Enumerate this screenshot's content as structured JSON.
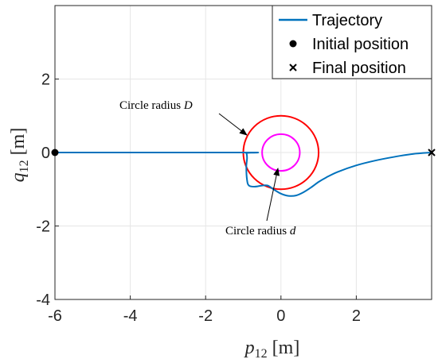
{
  "chart_data": {
    "type": "line",
    "title": "",
    "xlabel": {
      "var": "p",
      "sub": "12",
      "unit": "[m]"
    },
    "ylabel": {
      "var": "q",
      "sub": "12",
      "unit": "[m]"
    },
    "xlim": [
      -6,
      4
    ],
    "ylim": [
      -4,
      4
    ],
    "xticks": [
      -6,
      -4,
      -2,
      0,
      2
    ],
    "xtick_labels": [
      "-6",
      "-4",
      "-2",
      "0",
      "2"
    ],
    "yticks": [
      -4,
      -2,
      0,
      2
    ],
    "ytick_labels": [
      "-4",
      "-2",
      "0",
      "2"
    ],
    "grid": true,
    "legend": {
      "placement": "top-right",
      "entries": [
        {
          "label": "Trajectory",
          "marker": "line",
          "color": "#0072BD"
        },
        {
          "label": "Initial position",
          "marker": "dot",
          "color": "#000000"
        },
        {
          "label": "Final position",
          "marker": "x",
          "color": "#000000"
        }
      ]
    },
    "series": [
      {
        "name": "Trajectory",
        "color": "#0072BD",
        "points": [
          [
            -6.0,
            0.0
          ],
          [
            -1.0,
            0.0
          ],
          [
            -0.92,
            -0.02
          ],
          [
            -0.9,
            -0.15
          ],
          [
            -0.92,
            -0.4
          ],
          [
            -0.9,
            -0.75
          ],
          [
            -0.85,
            -0.9
          ],
          [
            -0.7,
            -0.93
          ],
          [
            -0.5,
            -0.9
          ],
          [
            -0.35,
            -0.9
          ],
          [
            -0.2,
            -1.0
          ],
          [
            0.0,
            -1.12
          ],
          [
            0.2,
            -1.18
          ],
          [
            0.4,
            -1.17
          ],
          [
            0.6,
            -1.08
          ],
          [
            0.8,
            -0.95
          ],
          [
            1.0,
            -0.8
          ],
          [
            1.2,
            -0.68
          ],
          [
            1.5,
            -0.53
          ],
          [
            2.0,
            -0.35
          ],
          [
            2.5,
            -0.22
          ],
          [
            3.0,
            -0.12
          ],
          [
            3.5,
            -0.04
          ],
          [
            4.0,
            0.0
          ]
        ]
      }
    ],
    "markers": {
      "initial": {
        "x": -6.0,
        "y": 0.0
      },
      "final": {
        "x": 4.0,
        "y": 0.0
      }
    },
    "circles": [
      {
        "name": "Circle radius D",
        "radius": 1.0,
        "color": "#FF0000"
      },
      {
        "name": "Circle radius d",
        "radius": 0.5,
        "color": "#FF00FF"
      }
    ],
    "annotations": [
      {
        "text": "Circle radius",
        "var": "D"
      },
      {
        "text": "Circle radius",
        "var": "d"
      }
    ]
  }
}
